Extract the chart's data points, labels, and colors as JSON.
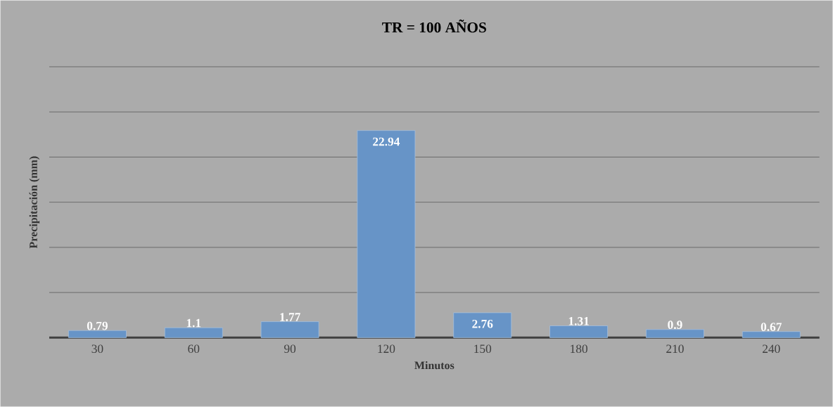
{
  "chart_data": {
    "type": "bar",
    "title": "TR = 100 AÑOS",
    "xlabel": "Minutos",
    "ylabel": "Precipitación (mm)",
    "categories": [
      "30",
      "60",
      "90",
      "120",
      "150",
      "180",
      "210",
      "240"
    ],
    "values": [
      0.79,
      1.1,
      1.77,
      22.94,
      2.76,
      1.31,
      0.9,
      0.67
    ],
    "color": "#6794c7",
    "ylim": [
      0,
      30
    ],
    "yticks": [
      {
        "value": 0,
        "label": null
      },
      {
        "value": 5,
        "label": null
      },
      {
        "value": 10,
        "label": null
      },
      {
        "value": 15,
        "label": null
      },
      {
        "value": 20,
        "label": null
      },
      {
        "value": 25,
        "label": null
      },
      {
        "value": 30,
        "label": null
      }
    ],
    "grid": "y",
    "tick_labels": "x",
    "data_labels": true
  }
}
